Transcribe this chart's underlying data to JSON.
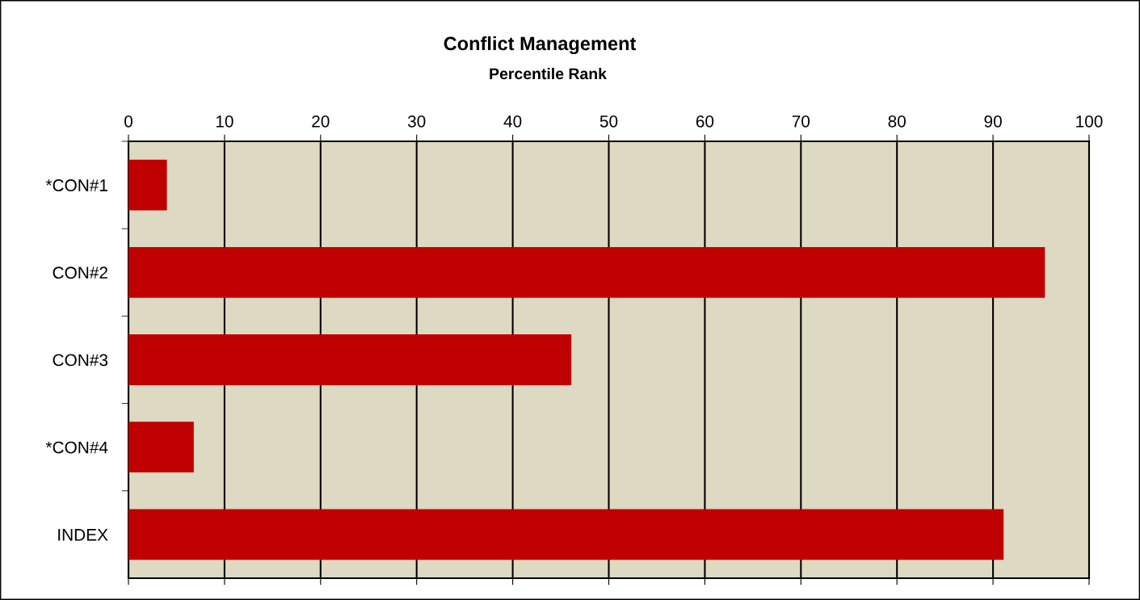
{
  "chart_data": {
    "type": "bar",
    "orientation": "horizontal",
    "title": "Conflict Management",
    "subtitle": "Percentile Rank",
    "categories": [
      "*CON#1",
      "CON#2",
      "CON#3",
      "*CON#4",
      "INDEX"
    ],
    "values": [
      4.0,
      95.4,
      46.1,
      6.8,
      91.1
    ],
    "color": "#c00000",
    "xlim": [
      0,
      100
    ],
    "xticks": [
      0,
      10,
      20,
      30,
      40,
      50,
      60,
      70,
      80,
      90,
      100
    ],
    "grid": "x",
    "legend": false
  }
}
